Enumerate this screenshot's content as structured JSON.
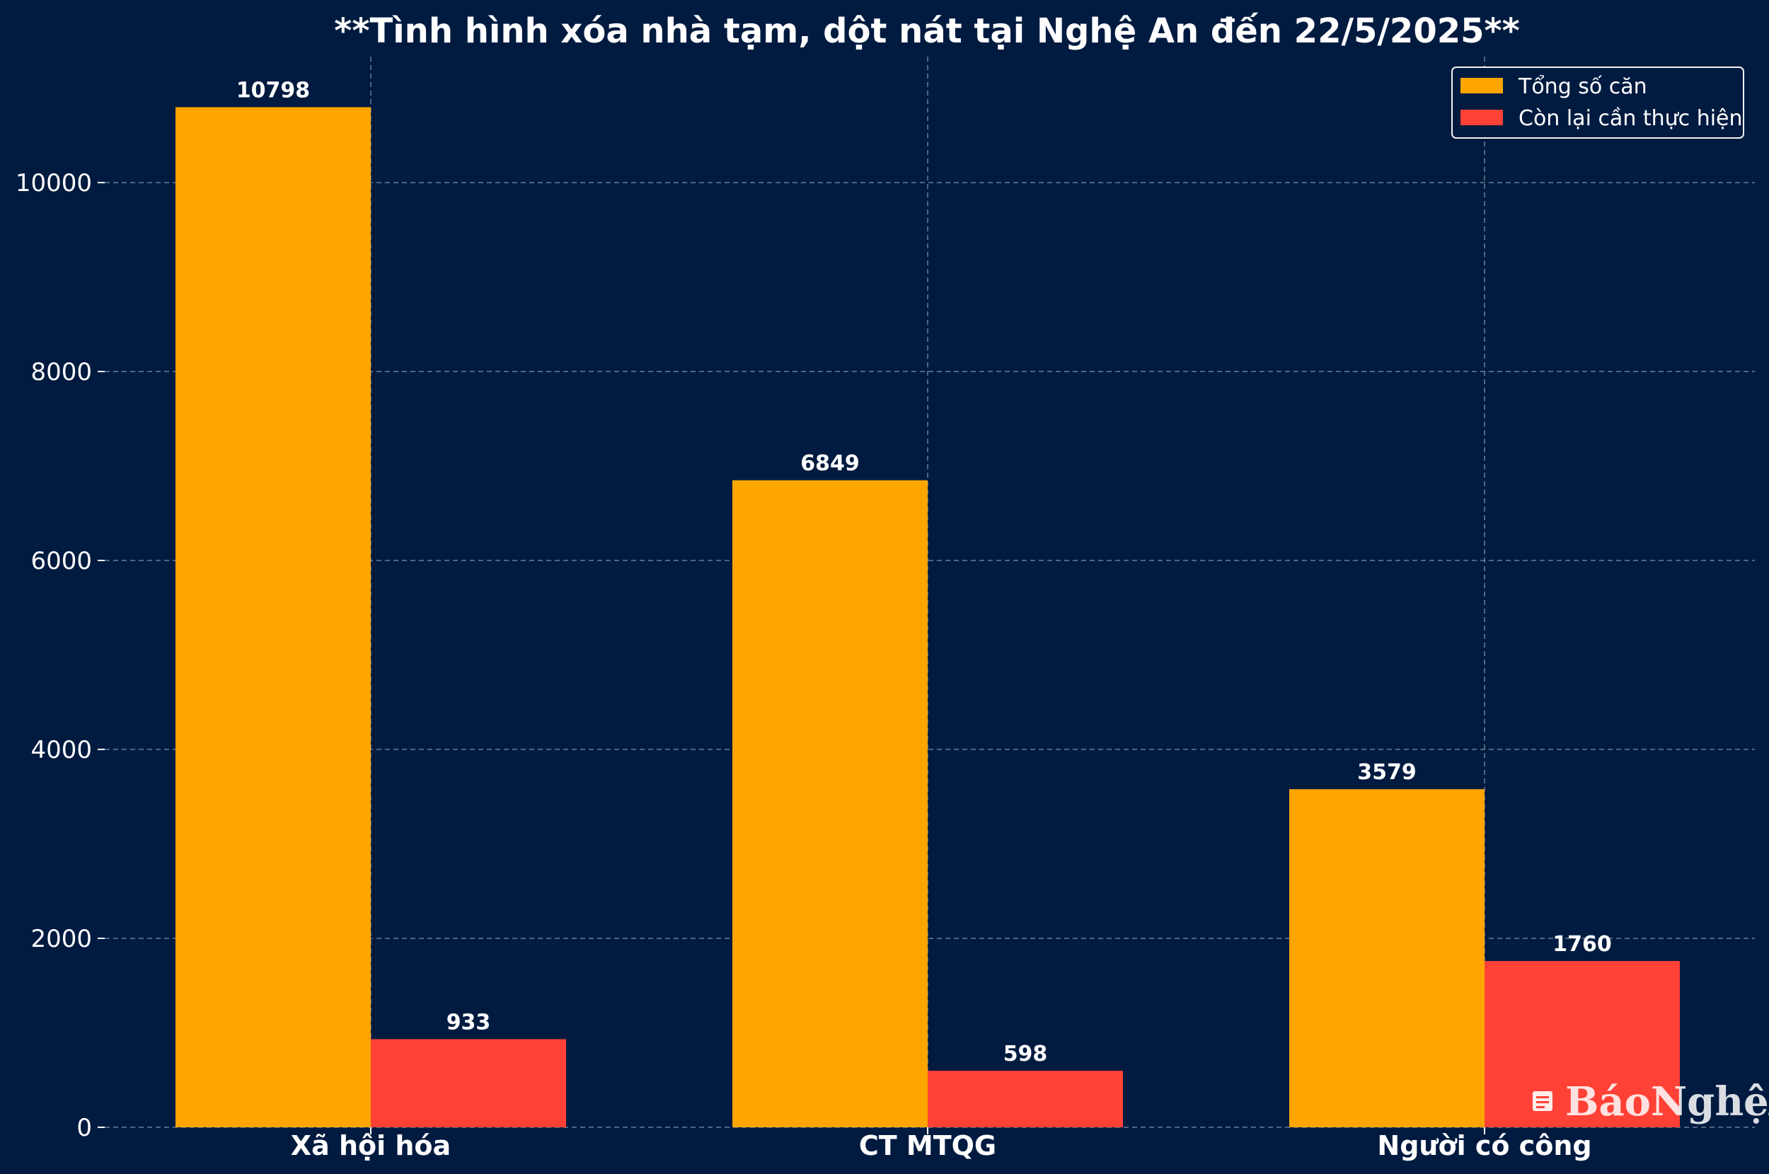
{
  "chart_data": {
    "type": "bar",
    "title": "**Tình hình xóa nhà tạm, dột nát tại Nghệ An đến 22/5/2025**",
    "categories": [
      "Xã hội hóa",
      "CT MTQG",
      "Người có công"
    ],
    "series": [
      {
        "name": "Tổng số căn",
        "values": [
          10798,
          6849,
          3579
        ],
        "color": "#ffa500"
      },
      {
        "name": "Còn lại cần thực hiện",
        "values": [
          933,
          598,
          1760
        ],
        "color": "#ff4136"
      }
    ],
    "y_ticks": [
      0,
      2000,
      4000,
      6000,
      8000,
      10000
    ],
    "ylim": [
      0,
      11800
    ],
    "grid": true,
    "legend_position": "top-right"
  },
  "watermark": {
    "text": "BáoNghệAn",
    "icon": "newspaper-logo-icon"
  }
}
